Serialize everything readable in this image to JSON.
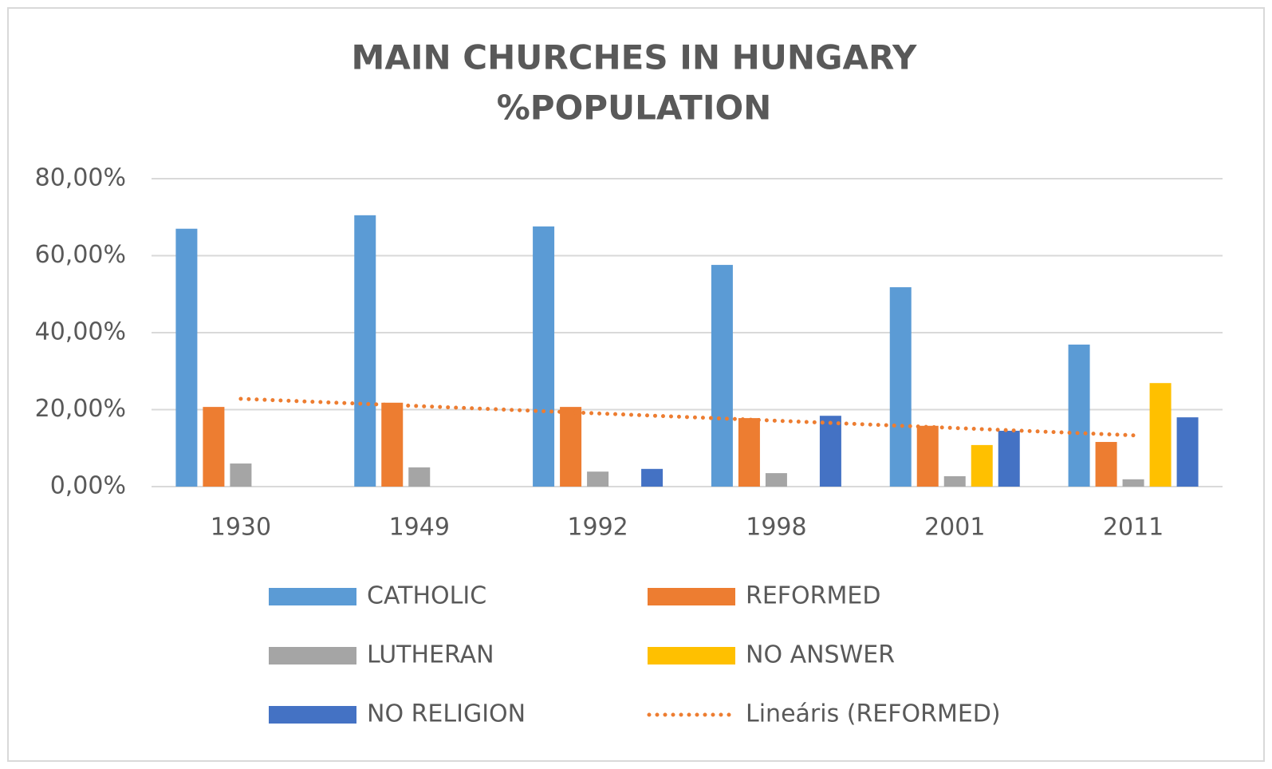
{
  "chart_data": {
    "type": "bar",
    "title": [
      "MAIN CHURCHES IN HUNGARY",
      "%POPULATION"
    ],
    "categories": [
      "1930",
      "1949",
      "1992",
      "1998",
      "2001",
      "2011"
    ],
    "series": [
      {
        "name": "CATHOLIC",
        "color": "#5b9bd5",
        "values": [
          67.0,
          70.5,
          67.6,
          57.6,
          51.8,
          36.9
        ]
      },
      {
        "name": "REFORMED",
        "color": "#ed7d31",
        "values": [
          20.7,
          21.8,
          20.7,
          17.8,
          15.8,
          11.6
        ]
      },
      {
        "name": "LUTHERAN",
        "color": "#a5a5a5",
        "values": [
          6.0,
          5.0,
          3.9,
          3.5,
          2.7,
          1.9
        ]
      },
      {
        "name": "NO ANSWER",
        "color": "#ffc000",
        "values": [
          null,
          null,
          null,
          null,
          10.8,
          26.9
        ]
      },
      {
        "name": "NO RELIGION",
        "color": "#4472c4",
        "values": [
          null,
          null,
          4.6,
          18.4,
          14.5,
          18.0
        ]
      }
    ],
    "trendline": {
      "name": "Lineáris (REFORMED)",
      "series": 1,
      "kind": "linear",
      "color": "#ed7d31"
    },
    "ylim": [
      0,
      80
    ],
    "yticks": [
      {
        "value": 0,
        "label": "0,00%"
      },
      {
        "value": 20,
        "label": "20,00%"
      },
      {
        "value": 40,
        "label": "40,00%"
      },
      {
        "value": 60,
        "label": "60,00%"
      },
      {
        "value": 80,
        "label": "80,00%"
      }
    ],
    "grid": true,
    "legend": "bottom"
  }
}
